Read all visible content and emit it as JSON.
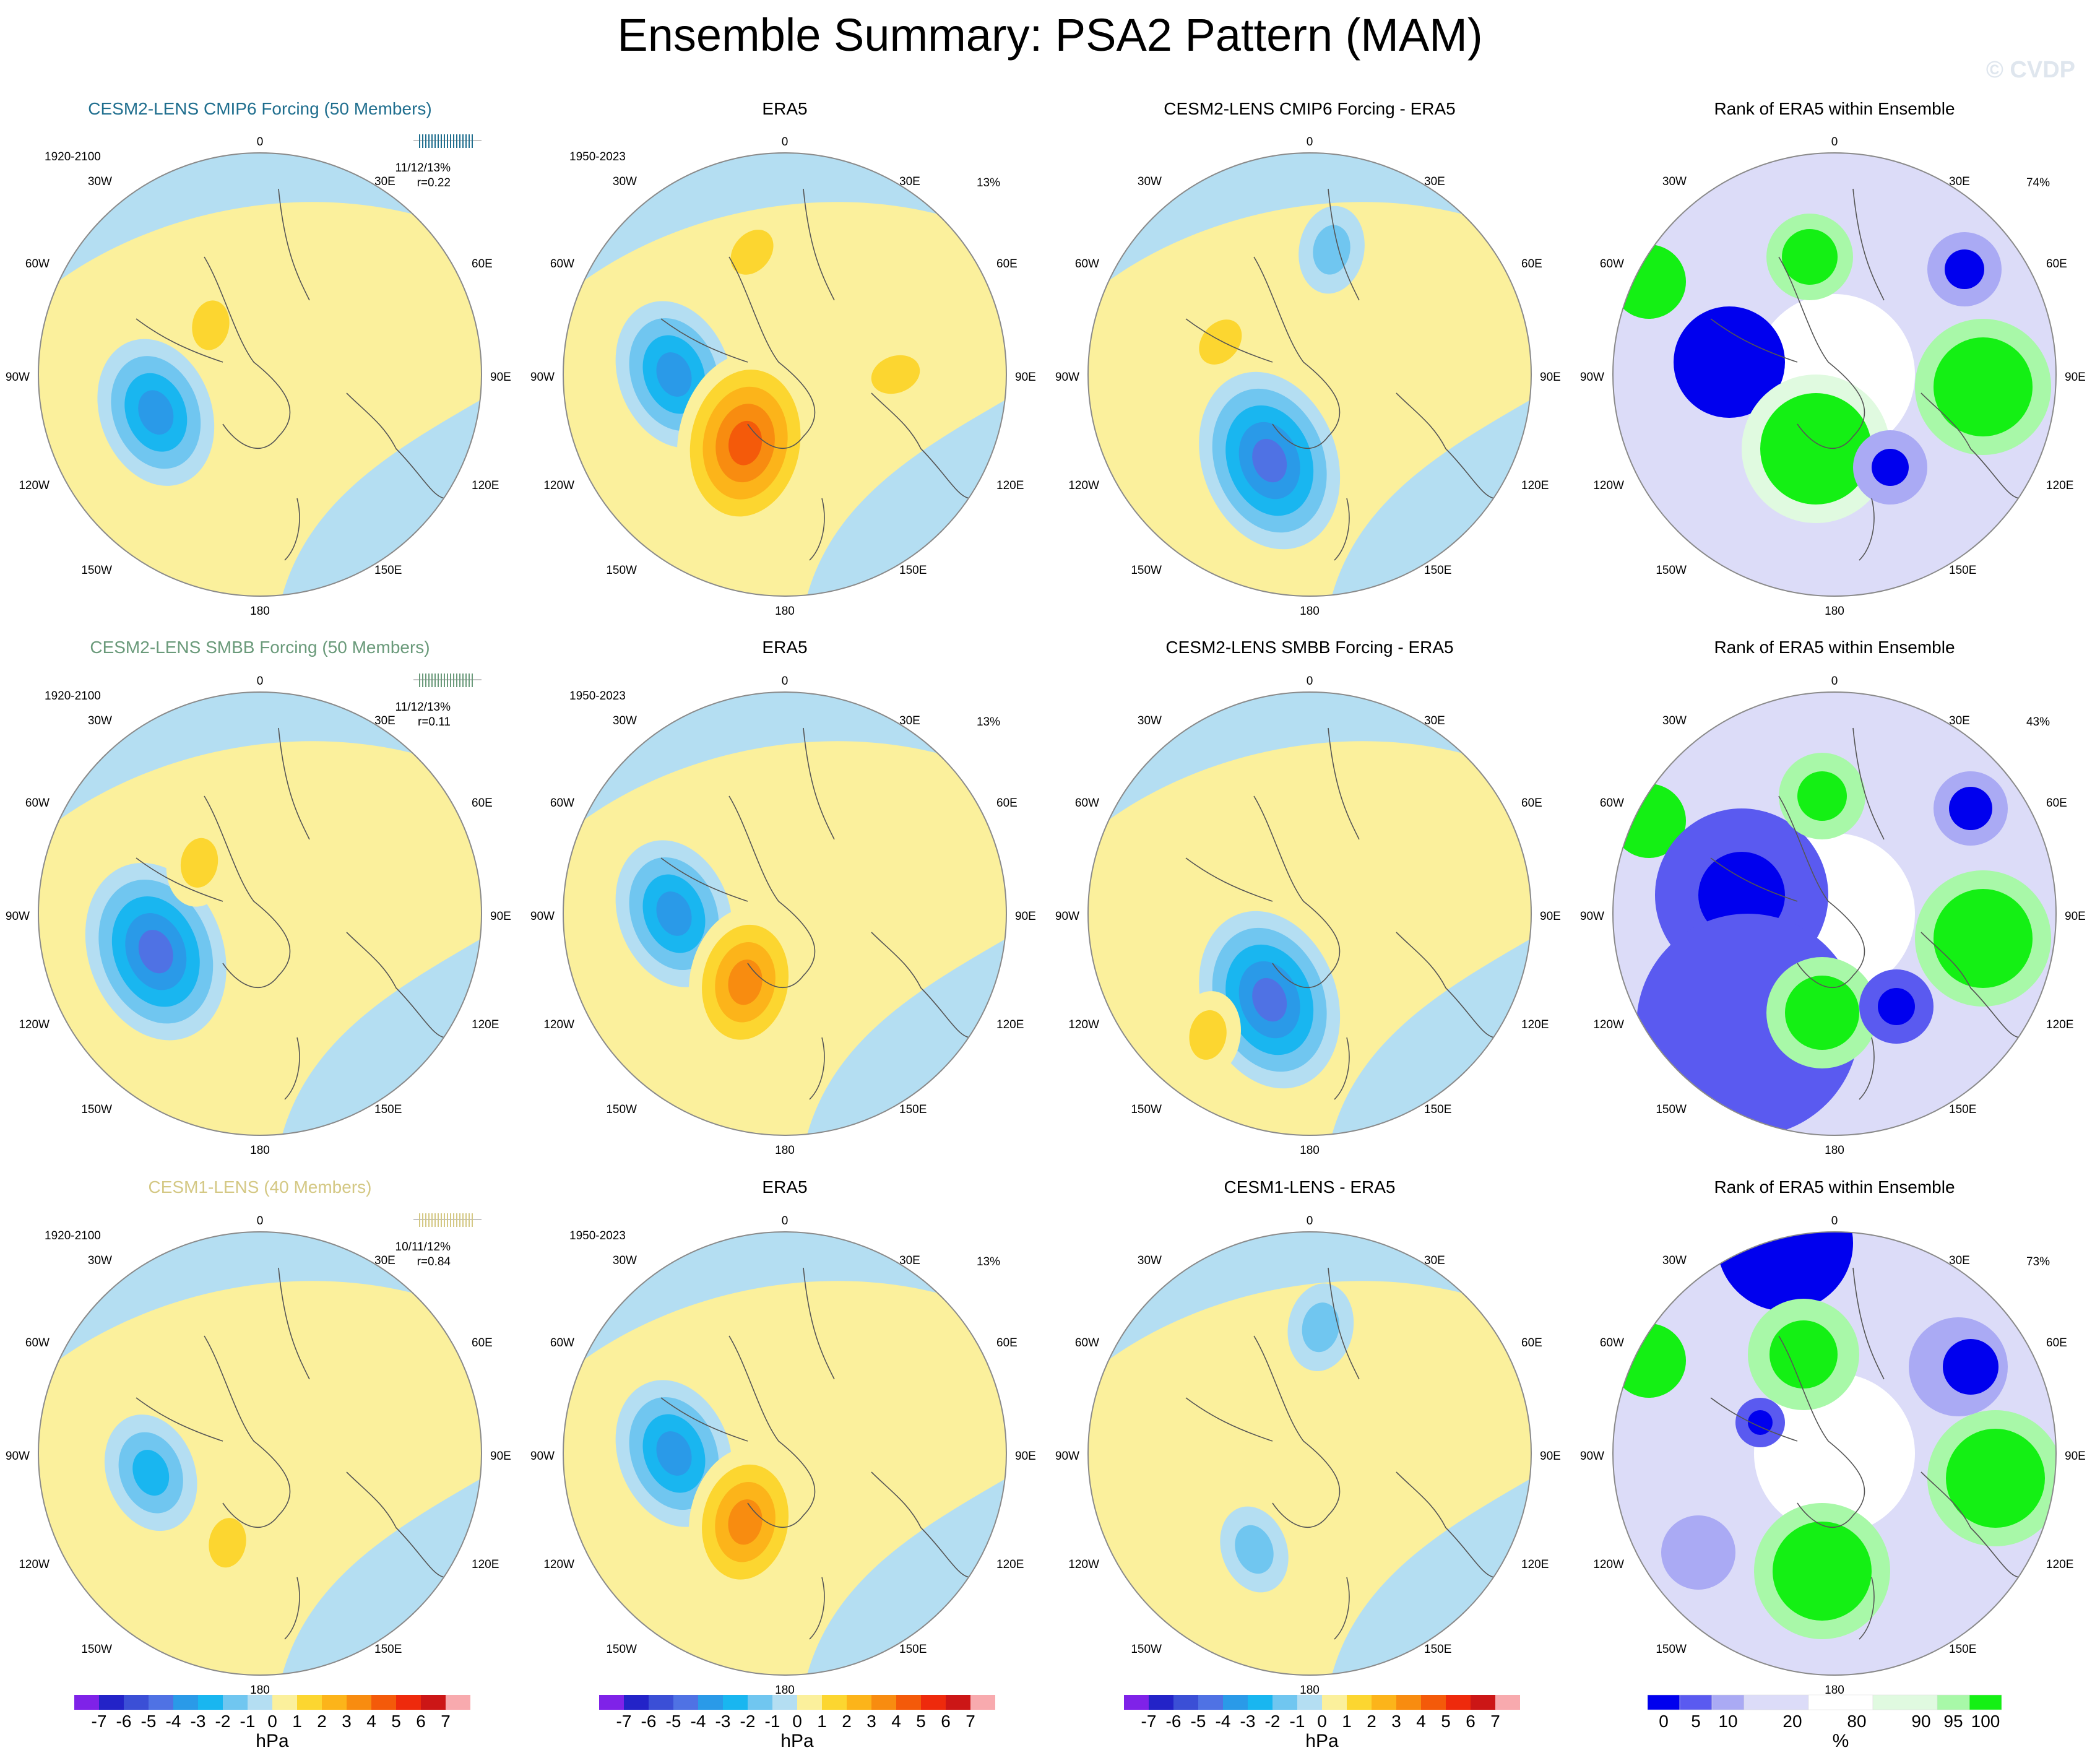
{
  "title": "Ensemble Summary: PSA2 Pattern (MAM)",
  "watermark": "© CVDP",
  "colors": {
    "neg7": "#7f22e8",
    "neg6": "#2323c8",
    "neg5": "#3b4fd6",
    "neg4": "#4f72e4",
    "neg3": "#2a9ae8",
    "neg2": "#19b6f0",
    "neg1": "#70c6f0",
    "neg0": "#b4def2",
    "pos0": "#fbf09c",
    "pos1": "#fcd630",
    "pos2": "#fcb41a",
    "pos3": "#f88c10",
    "pos4": "#f45a0a",
    "pos5": "#ee2a0c",
    "pos6": "#cc1616",
    "pos7": "#f8aaae",
    "rank0": "#0000ee",
    "rank5": "#5a5af0",
    "rank10": "#aaaaf4",
    "rank20": "#dcdcf8",
    "rank80": "#ffffff",
    "rank90": "#e0fae0",
    "rank95": "#a8f8a8",
    "rank100": "#14f014",
    "cmip6_title": "#1f6e8e",
    "smbb_title": "#6a9a7a",
    "cesm1_title": "#d4c884"
  },
  "map_labels": {
    "top": "0",
    "bottom": "180",
    "upper_left": "30W",
    "upper_right": "30E",
    "left_upper": "60W",
    "right_upper": "60E",
    "left": "90W",
    "right": "90E",
    "left_lower": "120W",
    "right_lower": "120E",
    "lower_left": "150W",
    "lower_right": "150E"
  },
  "chart_data": [
    {
      "type": "heatmap",
      "row": 1,
      "col": 1,
      "title": "CESM2-LENS CMIP6 Forcing (50 Members)",
      "period": "1920-2100",
      "stat": "11/12/13%",
      "corr": "r=0.22",
      "units": "hPa",
      "anomalies": [
        {
          "sign": "neg",
          "magnitude": 3,
          "location": "110W 55S"
        },
        {
          "sign": "pos",
          "magnitude": 1,
          "location": "45W 68S"
        }
      ]
    },
    {
      "type": "heatmap",
      "row": 1,
      "col": 2,
      "title": "ERA5",
      "period": "1950-2023",
      "percent": "13%",
      "units": "hPa",
      "anomalies": [
        {
          "sign": "neg",
          "magnitude": 3,
          "location": "90W 55S"
        },
        {
          "sign": "pos",
          "magnitude": 4,
          "location": "150W 65S"
        },
        {
          "sign": "pos",
          "magnitude": 1,
          "location": "15W 50S"
        },
        {
          "sign": "pos",
          "magnitude": 1,
          "location": "90E 55S"
        }
      ]
    },
    {
      "type": "heatmap",
      "row": 1,
      "col": 3,
      "title": "CESM2-LENS CMIP6 Forcing - ERA5",
      "units": "hPa",
      "anomalies": [
        {
          "sign": "neg",
          "magnitude": 4,
          "location": "155W 60S"
        },
        {
          "sign": "neg",
          "magnitude": 1,
          "location": "10E 50S"
        },
        {
          "sign": "pos",
          "magnitude": 1,
          "location": "70W 60S"
        }
      ]
    },
    {
      "type": "heatmap",
      "row": 1,
      "col": 4,
      "title": "Rank of ERA5 within Ensemble",
      "percent": "74%",
      "units": "%",
      "categories": [
        "0",
        "5",
        "10",
        "20",
        "80",
        "90",
        "95",
        "100"
      ]
    },
    {
      "type": "heatmap",
      "row": 2,
      "col": 1,
      "title": "CESM2-LENS SMBB Forcing (50 Members)",
      "period": "1920-2100",
      "stat": "11/12/13%",
      "corr": "r=0.11",
      "units": "hPa",
      "anomalies": [
        {
          "sign": "neg",
          "magnitude": 4,
          "location": "110W 55S"
        },
        {
          "sign": "pos",
          "magnitude": 1,
          "location": "50W 65S"
        }
      ]
    },
    {
      "type": "heatmap",
      "row": 2,
      "col": 2,
      "title": "ERA5",
      "period": "1950-2023",
      "percent": "13%",
      "units": "hPa",
      "anomalies": [
        {
          "sign": "neg",
          "magnitude": 3,
          "location": "90W 55S"
        },
        {
          "sign": "pos",
          "magnitude": 3,
          "location": "150W 65S"
        }
      ]
    },
    {
      "type": "heatmap",
      "row": 2,
      "col": 3,
      "title": "CESM2-LENS SMBB Forcing - ERA5",
      "units": "hPa",
      "anomalies": [
        {
          "sign": "neg",
          "magnitude": 4,
          "location": "155W 60S"
        },
        {
          "sign": "pos",
          "magnitude": 1,
          "location": "140W 40S"
        }
      ]
    },
    {
      "type": "heatmap",
      "row": 2,
      "col": 4,
      "title": "Rank of ERA5 within Ensemble",
      "percent": "43%",
      "units": "%",
      "categories": [
        "0",
        "5",
        "10",
        "20",
        "80",
        "90",
        "95",
        "100"
      ]
    },
    {
      "type": "heatmap",
      "row": 3,
      "col": 1,
      "title": "CESM1-LENS (40 Members)",
      "period": "1920-2100",
      "stat": "10/11/12%",
      "corr": "r=0.84",
      "units": "hPa",
      "anomalies": [
        {
          "sign": "neg",
          "magnitude": 2,
          "location": "100W 55S"
        },
        {
          "sign": "pos",
          "magnitude": 1,
          "location": "160W 60S"
        }
      ]
    },
    {
      "type": "heatmap",
      "row": 3,
      "col": 2,
      "title": "ERA5",
      "period": "1950-2023",
      "percent": "13%",
      "units": "hPa",
      "anomalies": [
        {
          "sign": "neg",
          "magnitude": 3,
          "location": "90W 55S"
        },
        {
          "sign": "pos",
          "magnitude": 3,
          "location": "150W 65S"
        }
      ]
    },
    {
      "type": "heatmap",
      "row": 3,
      "col": 3,
      "title": "CESM1-LENS - ERA5",
      "units": "hPa",
      "anomalies": [
        {
          "sign": "neg",
          "magnitude": 1,
          "location": "150W 55S"
        },
        {
          "sign": "neg",
          "magnitude": 1,
          "location": "5E 50S"
        }
      ]
    },
    {
      "type": "heatmap",
      "row": 3,
      "col": 4,
      "title": "Rank of ERA5 within Ensemble",
      "percent": "73%",
      "units": "%",
      "categories": [
        "0",
        "5",
        "10",
        "20",
        "80",
        "90",
        "95",
        "100"
      ]
    }
  ],
  "colorbars": {
    "hpa": {
      "ticks": [
        "-7",
        "-6",
        "-5",
        "-4",
        "-3",
        "-2",
        "-1",
        "0",
        "1",
        "2",
        "3",
        "4",
        "5",
        "6",
        "7"
      ],
      "units": "hPa"
    },
    "rank": {
      "ticks": [
        "0",
        "5",
        "10",
        "20",
        "80",
        "90",
        "95",
        "100"
      ],
      "units": "%"
    }
  }
}
